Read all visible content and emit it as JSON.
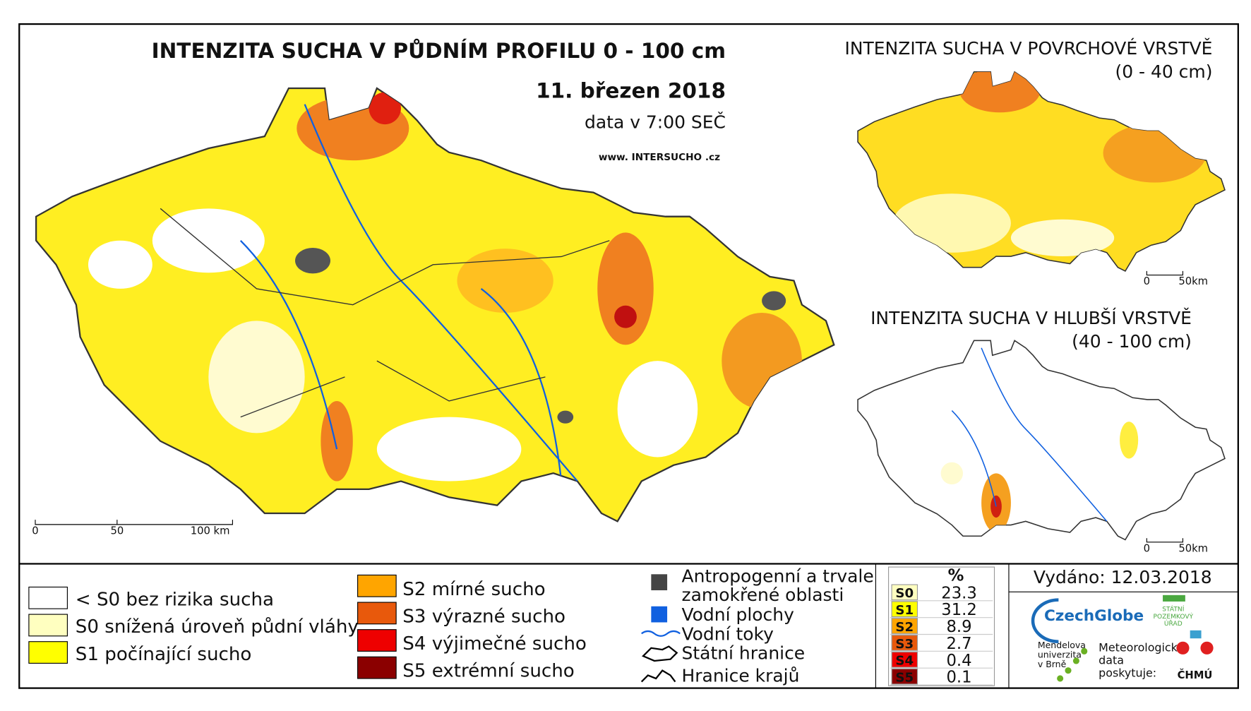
{
  "header": {
    "title": "INTENZITA SUCHA V PŮDNÍM PROFILU 0 - 100 cm",
    "date": "11. březen 2018",
    "time": "data v 7:00 SEČ",
    "website": "www. INTERSUCHO .cz"
  },
  "main_scale": [
    "0",
    "50",
    "100 km"
  ],
  "surface_map": {
    "title": "INTENZITA SUCHA V POVRCHOVÉ VRSTVĚ",
    "depth": "(0 - 40 cm)",
    "scale": [
      "0",
      "50km"
    ]
  },
  "deep_map": {
    "title": "INTENZITA SUCHA V HLUBŠÍ VRSTVĚ",
    "depth": "(40 - 100 cm)",
    "scale": [
      "0",
      "50km"
    ]
  },
  "legend": {
    "drought": [
      "< S0 bez rizika sucha",
      "S0 snížená úroveň půdní vláhy",
      "S1 počínající sucho",
      "S2 mírné sucho",
      "S3 výrazné sucho",
      "S4 výjimečné sucho",
      "S5 extrémní sucho"
    ],
    "other": [
      "Antropogenní a trvale",
      "zamokřené oblasti",
      "Vodní plochy",
      "Vodní toky",
      "Státní hranice",
      "Hranice krajů"
    ]
  },
  "table": {
    "header": "%",
    "rows": [
      [
        "S0",
        23.3
      ],
      [
        "S1",
        31.2
      ],
      [
        "S2",
        8.9
      ],
      [
        "S3",
        2.7
      ],
      [
        "S4",
        0.4
      ],
      [
        "S5",
        0.1
      ]
    ]
  },
  "footer": {
    "issued": "Vydáno: 12.03.2018",
    "logos": [
      "CzechGlobe",
      "Mendelova",
      "univerzita",
      "v Brně",
      "Meteorologická",
      "data",
      "poskytuje:",
      "STÁTNÍ",
      "POZEMKOVÝ",
      "ÚŘAD",
      "ČHMÚ"
    ]
  }
}
